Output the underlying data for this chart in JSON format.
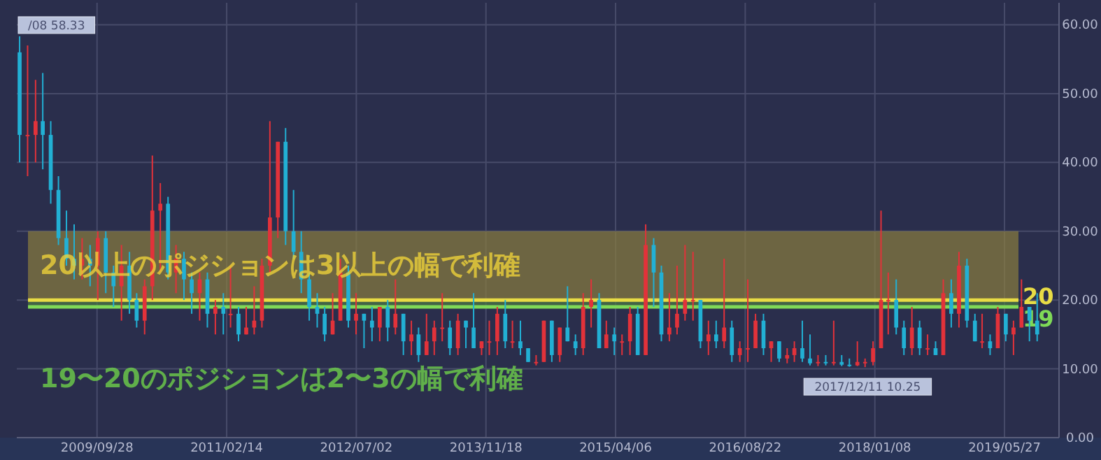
{
  "chart_data": {
    "type": "candlestick",
    "annotations": [
      "20以上のポジションは3以上の幅で利確",
      "19〜20のポジションは2〜3の幅で利確",
      {
        "text": "/08 58.33",
        "x": "2008-12",
        "y": 58.33
      },
      {
        "text": "2017/12/11 10.25",
        "x": "2017-12-11",
        "y": 10.25
      }
    ],
    "x": [
      "2008-12",
      "2009-01",
      "2009-02",
      "2009-03",
      "2009-04",
      "2009-05",
      "2009-06",
      "2009-07",
      "2009-08",
      "2009-09",
      "2009-10",
      "2009-11",
      "2009-12",
      "2010-01",
      "2010-02",
      "2010-03",
      "2010-04",
      "2010-05",
      "2010-06",
      "2010-07",
      "2010-08",
      "2010-09",
      "2010-10",
      "2010-11",
      "2010-12",
      "2011-01",
      "2011-02",
      "2011-03",
      "2011-04",
      "2011-05",
      "2011-06",
      "2011-07",
      "2011-08",
      "2011-09",
      "2011-10",
      "2011-11",
      "2011-12",
      "2012-01",
      "2012-02",
      "2012-03",
      "2012-04",
      "2012-05",
      "2012-06",
      "2012-07",
      "2012-08",
      "2012-09",
      "2012-10",
      "2012-11",
      "2012-12",
      "2013-01",
      "2013-02",
      "2013-03",
      "2013-04",
      "2013-05",
      "2013-06",
      "2013-07",
      "2013-08",
      "2013-09",
      "2013-10",
      "2013-11",
      "2013-12",
      "2014-01",
      "2014-02",
      "2014-03",
      "2014-04",
      "2014-05",
      "2014-06",
      "2014-07",
      "2014-08",
      "2014-09",
      "2014-10",
      "2014-11",
      "2014-12",
      "2015-01",
      "2015-02",
      "2015-03",
      "2015-04",
      "2015-05",
      "2015-06",
      "2015-07",
      "2015-08",
      "2015-09",
      "2015-10",
      "2015-11",
      "2015-12",
      "2016-01",
      "2016-02",
      "2016-03",
      "2016-04",
      "2016-05",
      "2016-06",
      "2016-07",
      "2016-08",
      "2016-09",
      "2016-10",
      "2016-11",
      "2016-12",
      "2017-01",
      "2017-02",
      "2017-03",
      "2017-04",
      "2017-05",
      "2017-06",
      "2017-07",
      "2017-08",
      "2017-09",
      "2017-10",
      "2017-11",
      "2017-12",
      "2018-01",
      "2018-02",
      "2018-03",
      "2018-04",
      "2018-05",
      "2018-06",
      "2018-07",
      "2018-08",
      "2018-09",
      "2018-10",
      "2018-11",
      "2018-12",
      "2019-01",
      "2019-02",
      "2019-03",
      "2019-04",
      "2019-05",
      "2019-06",
      "2019-07",
      "2019-08",
      "2019-09",
      "2019-10"
    ],
    "ohlc": [
      [
        56,
        58.33,
        40,
        44
      ],
      [
        44,
        57,
        38,
        44
      ],
      [
        44,
        52,
        40,
        46
      ],
      [
        46,
        53,
        39,
        44
      ],
      [
        44,
        46,
        34,
        36
      ],
      [
        36,
        38,
        28,
        29
      ],
      [
        29,
        33,
        25,
        26
      ],
      [
        26,
        31,
        23,
        25
      ],
      [
        25,
        29,
        23,
        26
      ],
      [
        26,
        28,
        22,
        25
      ],
      [
        25,
        30,
        20,
        29
      ],
      [
        29,
        30,
        21,
        24
      ],
      [
        24,
        25,
        19,
        22
      ],
      [
        22,
        28,
        17,
        25
      ],
      [
        25,
        27,
        18,
        20
      ],
      [
        20,
        21,
        16,
        17
      ],
      [
        17,
        23,
        15,
        22
      ],
      [
        22,
        41,
        20,
        33
      ],
      [
        33,
        37,
        24,
        34
      ],
      [
        34,
        35,
        23,
        24
      ],
      [
        24,
        28,
        21,
        26
      ],
      [
        26,
        27,
        20,
        23
      ],
      [
        23,
        24,
        18,
        21
      ],
      [
        21,
        24,
        17,
        23
      ],
      [
        23,
        24,
        16,
        18
      ],
      [
        18,
        20,
        15,
        19
      ],
      [
        19,
        21,
        15,
        18
      ],
      [
        18,
        25,
        16,
        18
      ],
      [
        18,
        19,
        14,
        15
      ],
      [
        15,
        19,
        15,
        16
      ],
      [
        16,
        22,
        15,
        17
      ],
      [
        17,
        26,
        16,
        25
      ],
      [
        25,
        46,
        24,
        32
      ],
      [
        32,
        43,
        29,
        43
      ],
      [
        43,
        45,
        28,
        30
      ],
      [
        30,
        36,
        26,
        27
      ],
      [
        27,
        30,
        21,
        23
      ],
      [
        23,
        24,
        17,
        19
      ],
      [
        19,
        21,
        16,
        18
      ],
      [
        18,
        19,
        14,
        15
      ],
      [
        15,
        21,
        15,
        17
      ],
      [
        17,
        26,
        17,
        24
      ],
      [
        24,
        25,
        16,
        17
      ],
      [
        17,
        21,
        15,
        18
      ],
      [
        18,
        18,
        13,
        17
      ],
      [
        17,
        19,
        14,
        16
      ],
      [
        16,
        19,
        14,
        19
      ],
      [
        19,
        20,
        14,
        16
      ],
      [
        16,
        23,
        15,
        18
      ],
      [
        18,
        18,
        12,
        14
      ],
      [
        14,
        17,
        12,
        15
      ],
      [
        15,
        16,
        11,
        12
      ],
      [
        12,
        18,
        12,
        14
      ],
      [
        14,
        17,
        12,
        16
      ],
      [
        16,
        21,
        14,
        16
      ],
      [
        16,
        17,
        12,
        13
      ],
      [
        13,
        18,
        12,
        17
      ],
      [
        17,
        17,
        13,
        16
      ],
      [
        16,
        21,
        13,
        13
      ],
      [
        13,
        14,
        12,
        14
      ],
      [
        14,
        17,
        12,
        14
      ],
      [
        14,
        19,
        12,
        18
      ],
      [
        18,
        20,
        13,
        14
      ],
      [
        14,
        17,
        13,
        14
      ],
      [
        14,
        17,
        12,
        13
      ],
      [
        13,
        13,
        11,
        11
      ],
      [
        11,
        12,
        10.5,
        11
      ],
      [
        11,
        17,
        11,
        17
      ],
      [
        17,
        17,
        11,
        12
      ],
      [
        12,
        16,
        11,
        16
      ],
      [
        16,
        22,
        14,
        14
      ],
      [
        14,
        15,
        12,
        13
      ],
      [
        13,
        21,
        12,
        19
      ],
      [
        19,
        23,
        16,
        20
      ],
      [
        20,
        21,
        13,
        13
      ],
      [
        13,
        17,
        13,
        15
      ],
      [
        15,
        16,
        12,
        14
      ],
      [
        14,
        15,
        12,
        14
      ],
      [
        14,
        19,
        12,
        18
      ],
      [
        18,
        19,
        12,
        12
      ],
      [
        12,
        31,
        12,
        28
      ],
      [
        28,
        29,
        19,
        24
      ],
      [
        24,
        25,
        14,
        15
      ],
      [
        15,
        21,
        14,
        16
      ],
      [
        16,
        25,
        15,
        18
      ],
      [
        18,
        28,
        17,
        20
      ],
      [
        20,
        27,
        17,
        20
      ],
      [
        20,
        20,
        13,
        14
      ],
      [
        14,
        17,
        12,
        15
      ],
      [
        15,
        17,
        13,
        14
      ],
      [
        14,
        26,
        13,
        16
      ],
      [
        16,
        17,
        11,
        12
      ],
      [
        12,
        14,
        11,
        13
      ],
      [
        13,
        23,
        11,
        13
      ],
      [
        13,
        18,
        13,
        17
      ],
      [
        17,
        18,
        12,
        13
      ],
      [
        13,
        14,
        11,
        14
      ],
      [
        14,
        14,
        11,
        11.5
      ],
      [
        11.5,
        13,
        10.8,
        12
      ],
      [
        12,
        14,
        11,
        13
      ],
      [
        13,
        17,
        11,
        11.5
      ],
      [
        11.5,
        15,
        10.5,
        10.8
      ],
      [
        10.8,
        12,
        10.4,
        11
      ],
      [
        11,
        12,
        10.5,
        10.8
      ],
      [
        10.8,
        17,
        10.5,
        11
      ],
      [
        11,
        12,
        10.4,
        10.6
      ],
      [
        10.6,
        11.5,
        10.3,
        10.5
      ],
      [
        10.5,
        14,
        10.4,
        11
      ],
      [
        11,
        11.5,
        10.25,
        11
      ],
      [
        11,
        14,
        10.5,
        13
      ],
      [
        13,
        33,
        13,
        20
      ],
      [
        20,
        24,
        15,
        20
      ],
      [
        20,
        23,
        15,
        16
      ],
      [
        16,
        17,
        12,
        13
      ],
      [
        13,
        19,
        12,
        16
      ],
      [
        16,
        17,
        12,
        13
      ],
      [
        13,
        15,
        12,
        13
      ],
      [
        13,
        14,
        12,
        12
      ],
      [
        12,
        23,
        12,
        21
      ],
      [
        21,
        23,
        16,
        18
      ],
      [
        18,
        27,
        16,
        25
      ],
      [
        25,
        26,
        16,
        17
      ],
      [
        17,
        18,
        14,
        14
      ],
      [
        14,
        18,
        13,
        14
      ],
      [
        14,
        15,
        12,
        13
      ],
      [
        13,
        19,
        13,
        18
      ],
      [
        18,
        18,
        14,
        15
      ],
      [
        15,
        17,
        12,
        16
      ],
      [
        16,
        23,
        16,
        19
      ],
      [
        19,
        19,
        14,
        17
      ],
      [
        17,
        21,
        14,
        15
      ]
    ],
    "xlim": [
      "2008-11-20",
      "2019-12-25"
    ],
    "xticks": [
      {
        "value": "2009-09-28",
        "label": "2009/09/28"
      },
      {
        "value": "2011-02-14",
        "label": "2011/02/14"
      },
      {
        "value": "2012-07-02",
        "label": "2012/07/02"
      },
      {
        "value": "2013-11-18",
        "label": "2013/11/18"
      },
      {
        "value": "2015-04-06",
        "label": "2015/04/06"
      },
      {
        "value": "2016-08-22",
        "label": "2016/08/22"
      },
      {
        "value": "2018-01-08",
        "label": "2018/01/08"
      },
      {
        "value": "2019-05-27",
        "label": "2019/05/27"
      }
    ],
    "ylim": [
      0,
      63.2
    ],
    "yticks": [
      {
        "value": 0,
        "label": "0.00"
      },
      {
        "value": 10,
        "label": "10.00"
      },
      {
        "value": 20,
        "label": "20.00"
      },
      {
        "value": 30,
        "label": "30.00"
      },
      {
        "value": 40,
        "label": "40.00"
      },
      {
        "value": 50,
        "label": "50.00"
      },
      {
        "value": 60,
        "label": "60.00"
      }
    ],
    "grid": true,
    "bands": [
      {
        "axis": "y",
        "from": 20,
        "to": 30,
        "color": "#8a7e3f"
      },
      {
        "axis": "y",
        "from": 19,
        "to": 20,
        "color": "#4d7a45"
      }
    ],
    "ref_lines": [
      {
        "axis": "y",
        "value": 20,
        "label": "20",
        "color": "#e8dc45"
      },
      {
        "axis": "y",
        "value": 19,
        "label": "19",
        "color": "#7fd957"
      }
    ]
  }
}
